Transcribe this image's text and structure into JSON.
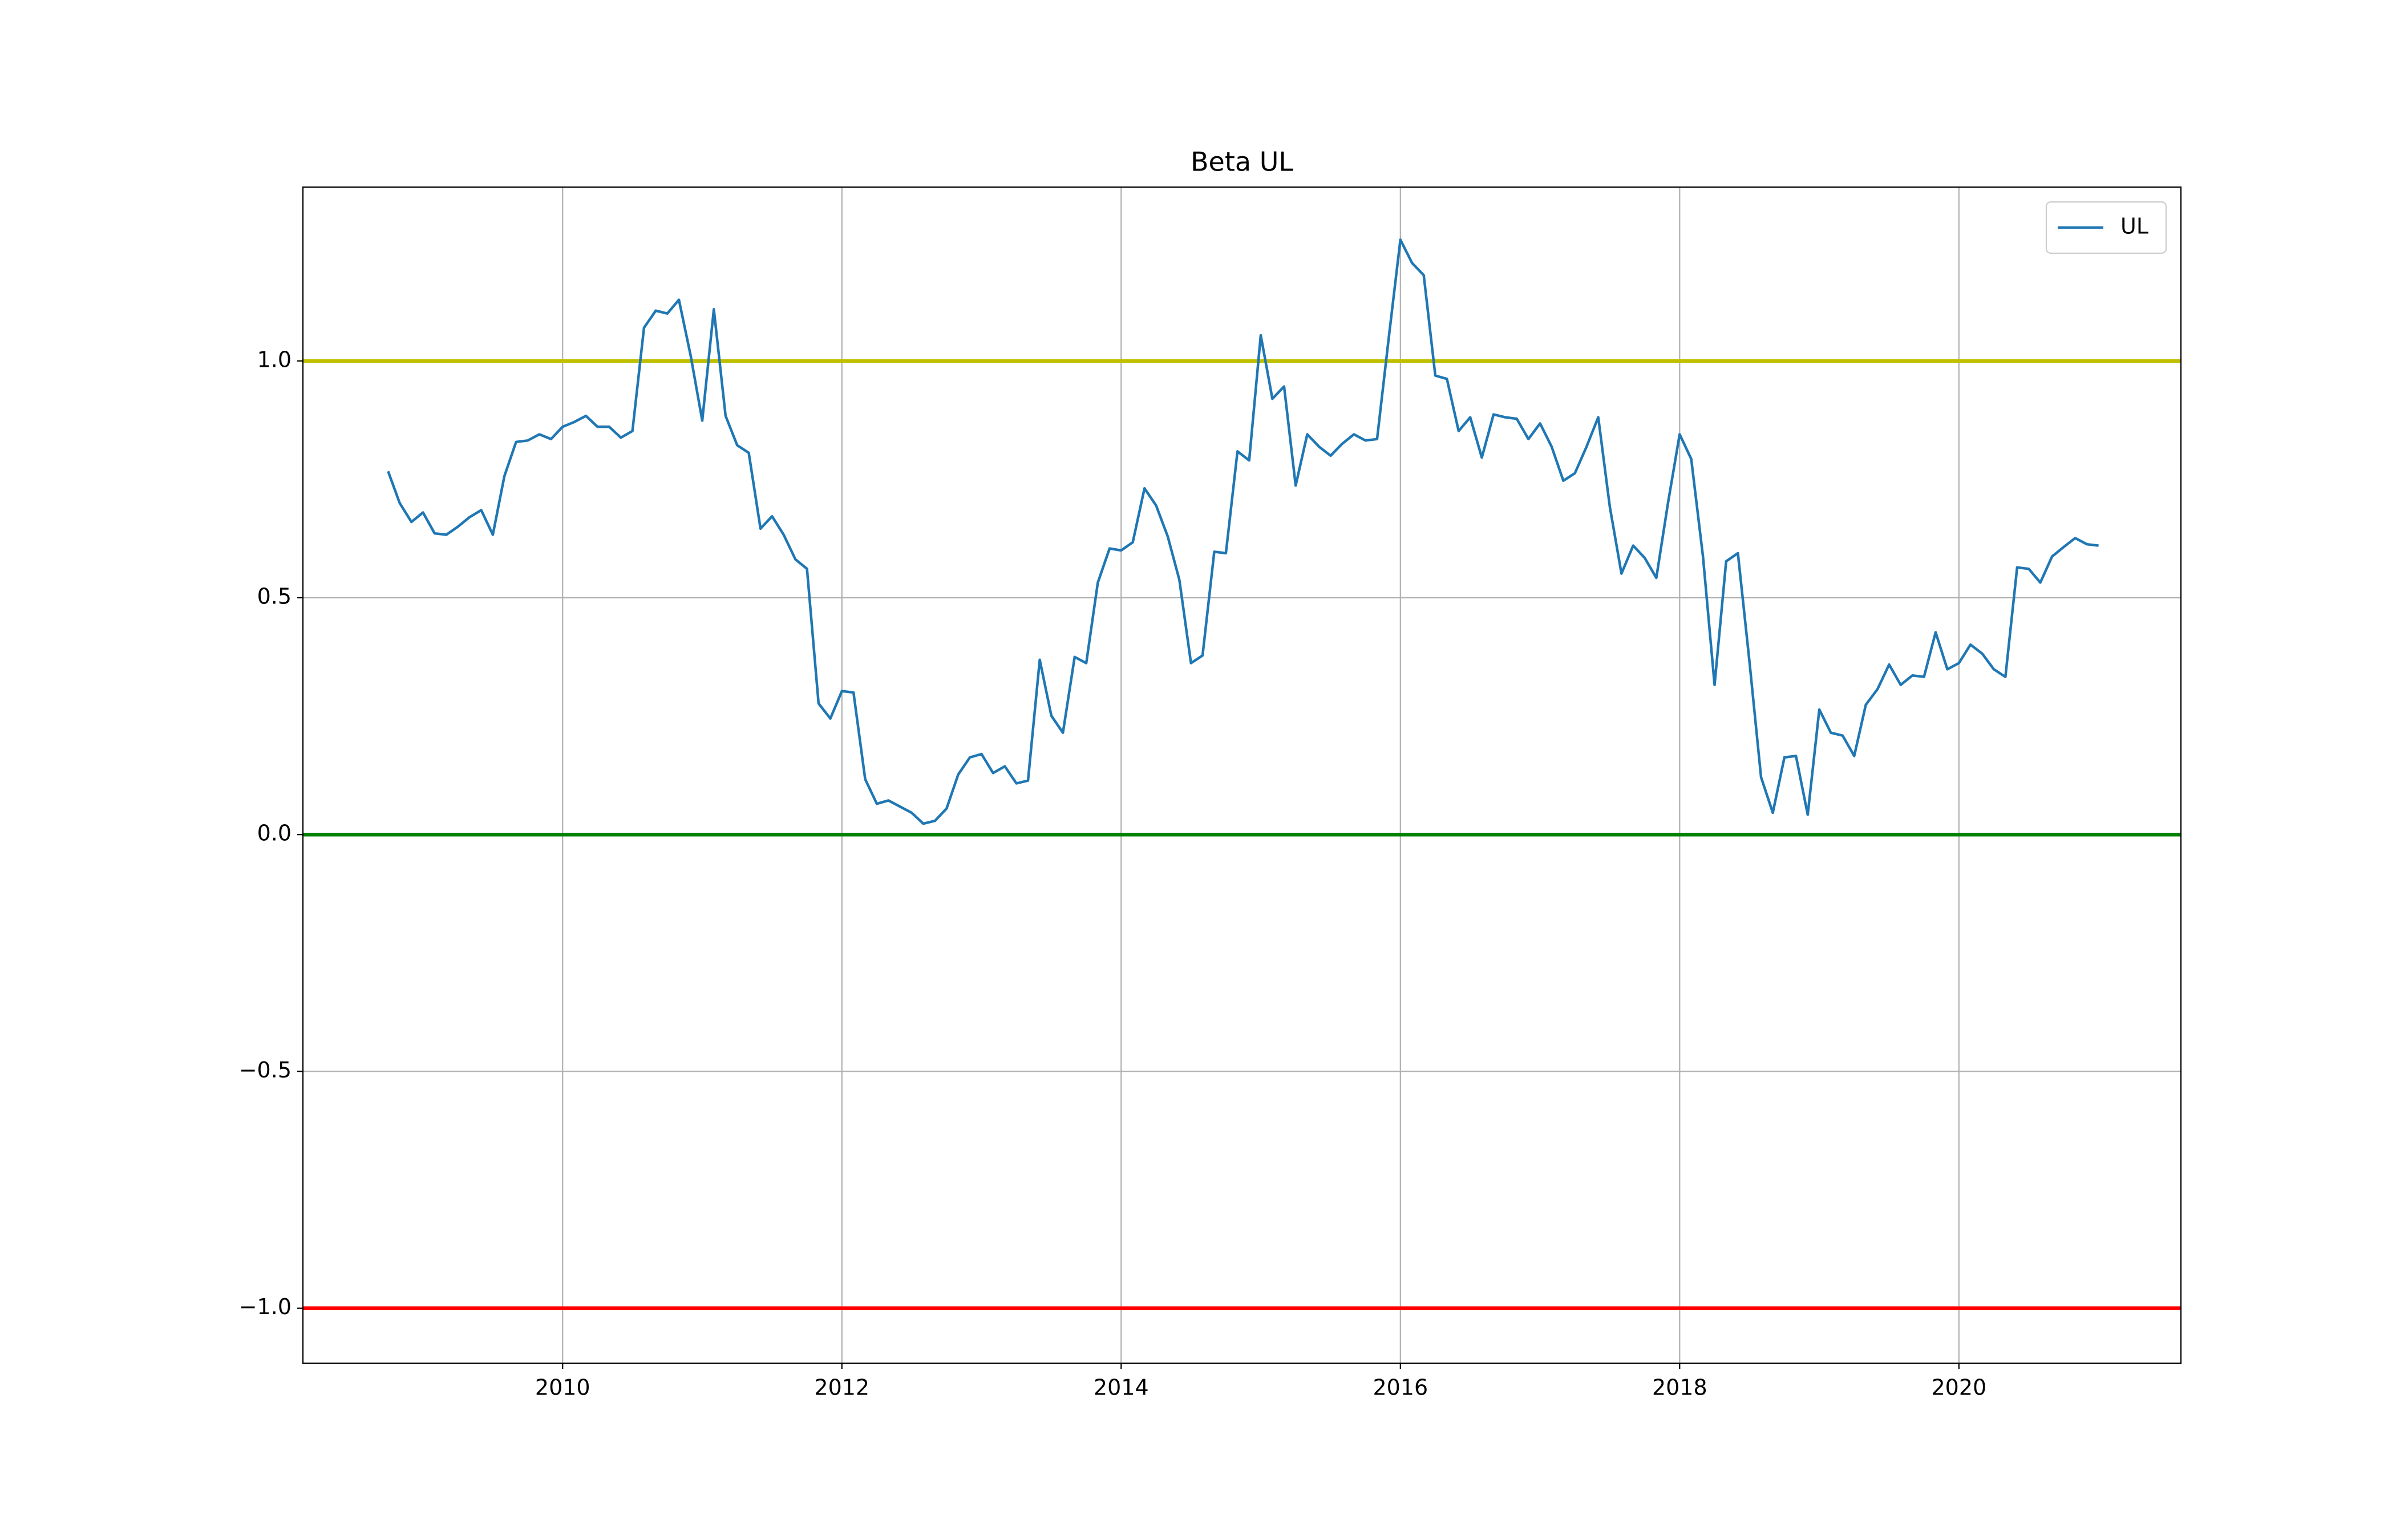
{
  "chart_data": {
    "type": "line",
    "title": "Beta UL",
    "x": [
      2008.75,
      2008.833,
      2008.917,
      2009.0,
      2009.083,
      2009.167,
      2009.25,
      2009.333,
      2009.417,
      2009.5,
      2009.583,
      2009.667,
      2009.75,
      2009.833,
      2009.917,
      2010.0,
      2010.083,
      2010.167,
      2010.25,
      2010.333,
      2010.417,
      2010.5,
      2010.583,
      2010.667,
      2010.75,
      2010.833,
      2010.917,
      2011.0,
      2011.083,
      2011.167,
      2011.25,
      2011.333,
      2011.417,
      2011.5,
      2011.583,
      2011.667,
      2011.75,
      2011.833,
      2011.917,
      2012.0,
      2012.083,
      2012.167,
      2012.25,
      2012.333,
      2012.417,
      2012.5,
      2012.583,
      2012.667,
      2012.75,
      2012.833,
      2012.917,
      2013.0,
      2013.083,
      2013.167,
      2013.25,
      2013.333,
      2013.417,
      2013.5,
      2013.583,
      2013.667,
      2013.75,
      2013.833,
      2013.917,
      2014.0,
      2014.083,
      2014.167,
      2014.25,
      2014.333,
      2014.417,
      2014.5,
      2014.583,
      2014.667,
      2014.75,
      2014.833,
      2014.917,
      2015.0,
      2015.083,
      2015.167,
      2015.25,
      2015.333,
      2015.417,
      2015.5,
      2015.583,
      2015.667,
      2015.75,
      2015.833,
      2015.917,
      2016.0,
      2016.083,
      2016.167,
      2016.25,
      2016.333,
      2016.417,
      2016.5,
      2016.583,
      2016.667,
      2016.75,
      2016.833,
      2016.917,
      2017.0,
      2017.083,
      2017.167,
      2017.25,
      2017.333,
      2017.417,
      2017.5,
      2017.583,
      2017.667,
      2017.75,
      2017.833,
      2017.917,
      2018.0,
      2018.083,
      2018.167,
      2018.25,
      2018.333,
      2018.417,
      2018.5,
      2018.583,
      2018.667,
      2018.75,
      2018.833,
      2018.917,
      2019.0,
      2019.083,
      2019.167,
      2019.25,
      2019.333,
      2019.417,
      2019.5,
      2019.583,
      2019.667,
      2019.75,
      2019.833,
      2019.917,
      2020.0,
      2020.083,
      2020.167,
      2020.25,
      2020.333,
      2020.417,
      2020.5,
      2020.583,
      2020.667,
      2020.75,
      2020.833,
      2020.917,
      2021.0
    ],
    "series": [
      {
        "name": "UL",
        "color": "#1f77b4",
        "values": [
          0.767,
          0.7,
          0.66,
          0.68,
          0.636,
          0.633,
          0.65,
          0.67,
          0.685,
          0.633,
          0.757,
          0.829,
          0.832,
          0.845,
          0.835,
          0.861,
          0.871,
          0.884,
          0.861,
          0.861,
          0.838,
          0.852,
          1.07,
          1.106,
          1.1,
          1.129,
          1.011,
          0.874,
          1.109,
          0.884,
          0.822,
          0.806,
          0.646,
          0.672,
          0.633,
          0.581,
          0.561,
          0.277,
          0.245,
          0.303,
          0.3,
          0.117,
          0.065,
          0.072,
          0.059,
          0.046,
          0.023,
          0.029,
          0.055,
          0.127,
          0.163,
          0.17,
          0.13,
          0.144,
          0.108,
          0.114,
          0.369,
          0.251,
          0.215,
          0.375,
          0.362,
          0.532,
          0.604,
          0.6,
          0.617,
          0.731,
          0.695,
          0.63,
          0.538,
          0.362,
          0.378,
          0.597,
          0.594,
          0.809,
          0.79,
          1.054,
          0.92,
          0.946,
          0.737,
          0.845,
          0.819,
          0.8,
          0.825,
          0.845,
          0.832,
          0.835,
          1.05,
          1.256,
          1.207,
          1.181,
          0.969,
          0.962,
          0.852,
          0.881,
          0.796,
          0.887,
          0.881,
          0.878,
          0.835,
          0.868,
          0.819,
          0.747,
          0.763,
          0.819,
          0.881,
          0.692,
          0.551,
          0.61,
          0.584,
          0.542,
          0.701,
          0.845,
          0.793,
          0.587,
          0.316,
          0.577,
          0.594,
          0.365,
          0.121,
          0.046,
          0.163,
          0.166,
          0.042,
          0.264,
          0.215,
          0.209,
          0.166,
          0.274,
          0.307,
          0.359,
          0.316,
          0.336,
          0.333,
          0.427,
          0.349,
          0.362,
          0.401,
          0.382,
          0.349,
          0.333,
          0.564,
          0.561,
          0.532,
          0.587,
          0.607,
          0.626,
          0.613,
          0.61
        ]
      }
    ],
    "hlines": [
      {
        "value": 1.0,
        "color": "#bfbf00"
      },
      {
        "value": 0,
        "color": "#008000"
      },
      {
        "value": -1.0,
        "color": "#ff0000"
      }
    ],
    "xlim": [
      2008.14,
      2021.59
    ],
    "xticks": [
      2010,
      2012,
      2014,
      2016,
      2018,
      2020
    ],
    "ylim": [
      -1.116,
      1.367
    ],
    "yticks": [
      {
        "value": -1.0,
        "label": "−1.0"
      },
      {
        "value": -0.5,
        "label": "−0.5"
      },
      {
        "value": 0,
        "label": "0.0"
      },
      0.5,
      {
        "value": 1.0,
        "label": "1.0"
      }
    ],
    "grid": true,
    "legend": "upper right"
  }
}
